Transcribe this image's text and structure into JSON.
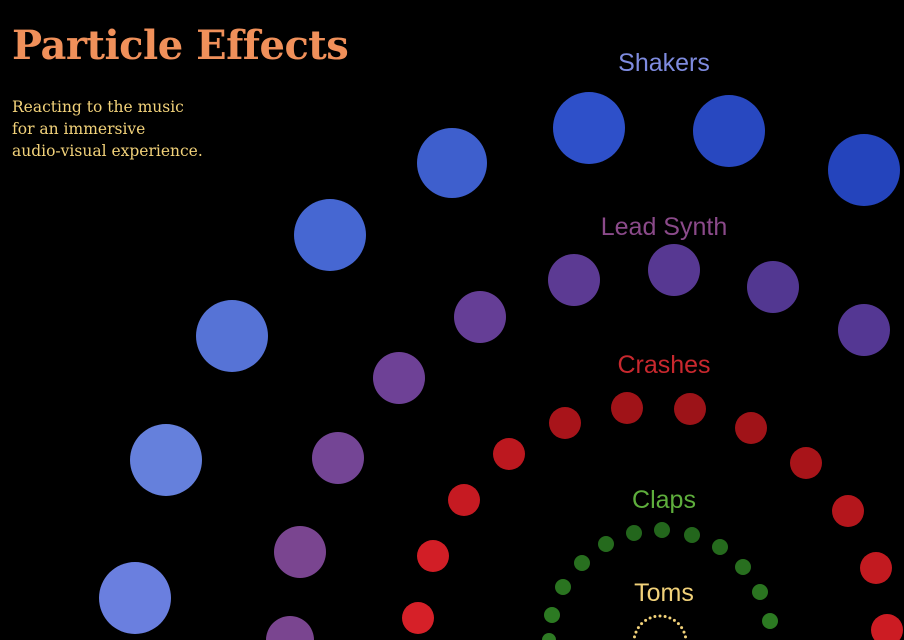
{
  "title": "Particle Effects",
  "subtitle_lines": [
    "Reacting to the music",
    "for an immersive",
    "audio-visual experience."
  ],
  "colors": {
    "background": "#000000",
    "title": "#F0905A",
    "subtitle": "#F2D27A"
  },
  "rings": [
    {
      "label": "Shakers",
      "label_color": "#7E8BDF",
      "particle_color": "#3F5FD0"
    },
    {
      "label": "Lead Synth",
      "label_color": "#8B4A8A",
      "particle_color": "#5E3A92"
    },
    {
      "label": "Crashes",
      "label_color": "#C8282E",
      "particle_color": "#A8141A"
    },
    {
      "label": "Claps",
      "label_color": "#5EAE3C",
      "particle_color": "#256E1E"
    },
    {
      "label": "Toms",
      "label_color": "#F2D27A",
      "particle_color": "#F2D27A"
    }
  ]
}
